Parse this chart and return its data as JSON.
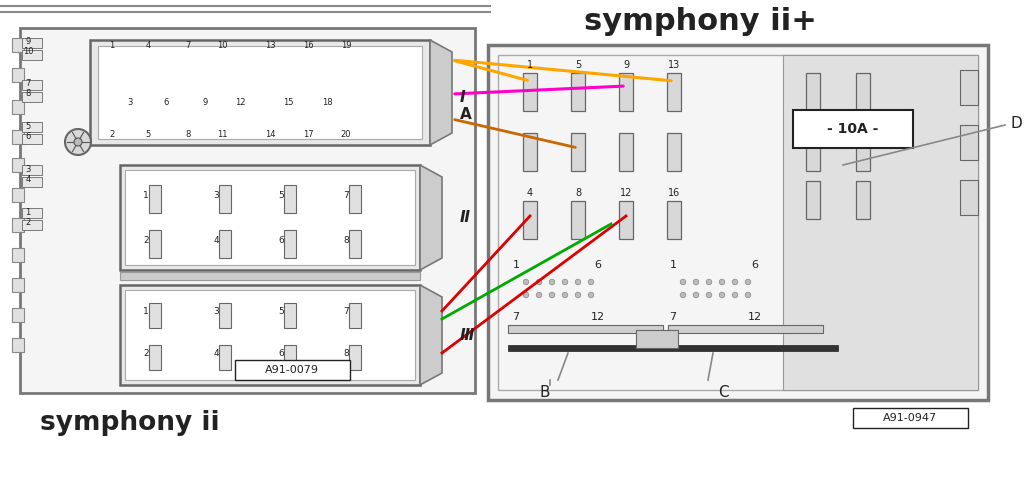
{
  "bg_color": "#ffffff",
  "title": "symphony ii+",
  "left_label": "symphony ii",
  "left_ref": "A91-0079",
  "right_ref": "A91-0947",
  "fuse_label": "- 10A -",
  "label_I": "I",
  "label_A": "A",
  "label_II": "Ⅱ",
  "label_III": "Ⅲ",
  "label_B": "B",
  "label_C": "C",
  "label_D": "D",
  "gray_bar_color": "#999999",
  "outer_box_color": "#aaaaaa",
  "inner_fill": "#f0f0f0",
  "pin_fill": "#d8d8d8",
  "pin_edge": "#888888",
  "dark_gray": "#666666",
  "black": "#222222",
  "wire_orange": "#FFA500",
  "wire_magenta": "#FF00CC",
  "wire_orange2": "#CC6600",
  "wire_red": "#DD0000",
  "wire_green": "#00AA00",
  "highlight_orange": "#FFA040",
  "highlight_magenta": "#FF66FF"
}
